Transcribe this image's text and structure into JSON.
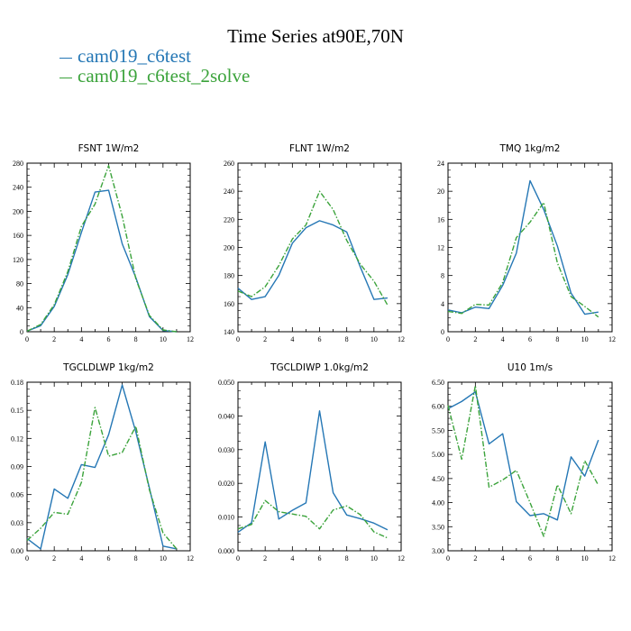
{
  "figure": {
    "title": "Time Series at90E,70N"
  },
  "legend": [
    {
      "name": "cam019_c6test",
      "color": "#2577b5"
    },
    {
      "name": "cam019_c6test_2solve",
      "color": "#3ba33b"
    }
  ],
  "chart_data": [
    {
      "type": "line",
      "title": "FSNT   1W/m2",
      "xlim": [
        0,
        12
      ],
      "ylim": [
        0,
        280
      ],
      "xticks": [
        0,
        2,
        4,
        6,
        8,
        10,
        12
      ],
      "yticks": [
        0,
        40,
        80,
        120,
        160,
        200,
        240,
        280
      ],
      "ytick_labels": [
        "0",
        "40",
        "80",
        "120",
        "160",
        "200",
        "240",
        "280"
      ],
      "x": [
        0,
        1,
        2,
        3,
        4,
        5,
        6,
        7,
        8,
        9,
        10,
        11
      ],
      "series": [
        {
          "name": "cam019_c6test",
          "values": [
            1,
            10,
            42,
            95,
            165,
            232,
            235,
            146,
            90,
            25,
            2,
            0
          ]
        },
        {
          "name": "cam019_c6test_2solve",
          "values": [
            1,
            12,
            45,
            100,
            175,
            212,
            276,
            192,
            88,
            27,
            3,
            0
          ]
        }
      ]
    },
    {
      "type": "line",
      "title": "FLNT   1W/m2",
      "xlim": [
        0,
        12
      ],
      "ylim": [
        140,
        260
      ],
      "xticks": [
        0,
        2,
        4,
        6,
        8,
        10,
        12
      ],
      "yticks": [
        140,
        160,
        180,
        200,
        220,
        240,
        260
      ],
      "ytick_labels": [
        "140",
        "160",
        "180",
        "200",
        "220",
        "240",
        "260"
      ],
      "x": [
        0,
        1,
        2,
        3,
        4,
        5,
        6,
        7,
        8,
        9,
        10,
        11
      ],
      "series": [
        {
          "name": "cam019_c6test",
          "values": [
            171,
            163,
            165,
            180,
            203,
            214,
            219,
            216,
            211,
            186,
            163,
            164
          ]
        },
        {
          "name": "cam019_c6test_2solve",
          "values": [
            169,
            165,
            172,
            187,
            206,
            216,
            240,
            227,
            205,
            188,
            176,
            159
          ]
        }
      ]
    },
    {
      "type": "line",
      "title": "TMQ   1kg/m2",
      "xlim": [
        0,
        12
      ],
      "ylim": [
        0,
        24
      ],
      "xticks": [
        0,
        2,
        4,
        6,
        8,
        10,
        12
      ],
      "yticks": [
        0,
        4,
        8,
        12,
        16,
        20,
        24
      ],
      "ytick_labels": [
        "0",
        "4",
        "8",
        "12",
        "16",
        "20",
        "24"
      ],
      "x": [
        0,
        1,
        2,
        3,
        4,
        5,
        6,
        7,
        8,
        9,
        10,
        11
      ],
      "series": [
        {
          "name": "cam019_c6test",
          "values": [
            3.1,
            2.7,
            3.5,
            3.3,
            6.6,
            11.2,
            21.5,
            17.4,
            12.2,
            5.5,
            2.5,
            2.8
          ]
        },
        {
          "name": "cam019_c6test_2solve",
          "values": [
            2.9,
            2.6,
            3.9,
            3.8,
            7.0,
            13.4,
            15.6,
            18.4,
            9.8,
            5.0,
            3.6,
            2.1
          ]
        }
      ]
    },
    {
      "type": "line",
      "title": "TGCLDLWP   1kg/m2",
      "xlim": [
        0,
        12
      ],
      "ylim": [
        0,
        0.18
      ],
      "xticks": [
        0,
        2,
        4,
        6,
        8,
        10,
        12
      ],
      "yticks": [
        0,
        0.03,
        0.06,
        0.09,
        0.12,
        0.15,
        0.18
      ],
      "ytick_labels": [
        "0.00",
        "0.03",
        "0.06",
        "0.09",
        "0.12",
        "0.15",
        "0.18"
      ],
      "x": [
        0,
        1,
        2,
        3,
        4,
        5,
        6,
        7,
        8,
        9,
        10,
        11
      ],
      "series": [
        {
          "name": "cam019_c6test",
          "values": [
            0.013,
            0.002,
            0.066,
            0.056,
            0.092,
            0.089,
            0.124,
            0.177,
            0.127,
            0.067,
            0.005,
            0.002
          ]
        },
        {
          "name": "cam019_c6test_2solve",
          "values": [
            0.011,
            0.024,
            0.041,
            0.039,
            0.073,
            0.153,
            0.101,
            0.105,
            0.133,
            0.065,
            0.019,
            0.002
          ]
        }
      ]
    },
    {
      "type": "line",
      "title": "TGCLDIWP   1.0kg/m2",
      "xlim": [
        0,
        12
      ],
      "ylim": [
        0,
        0.05
      ],
      "xticks": [
        0,
        2,
        4,
        6,
        8,
        10,
        12
      ],
      "yticks": [
        0,
        0.01,
        0.02,
        0.03,
        0.04,
        0.05
      ],
      "ytick_labels": [
        "0.000",
        "0.010",
        "0.020",
        "0.030",
        "0.040",
        "0.050"
      ],
      "x": [
        0,
        1,
        2,
        3,
        4,
        5,
        6,
        7,
        8,
        9,
        10,
        11
      ],
      "series": [
        {
          "name": "cam019_c6test",
          "values": [
            0.0055,
            0.0083,
            0.0323,
            0.0094,
            0.012,
            0.0142,
            0.0415,
            0.0172,
            0.0106,
            0.0095,
            0.0082,
            0.0062
          ]
        },
        {
          "name": "cam019_c6test_2solve",
          "values": [
            0.0065,
            0.0078,
            0.0149,
            0.0116,
            0.0109,
            0.0102,
            0.0065,
            0.0121,
            0.0133,
            0.0107,
            0.0056,
            0.0038
          ]
        }
      ]
    },
    {
      "type": "line",
      "title": "U10   1m/s",
      "xlim": [
        0,
        12
      ],
      "ylim": [
        3.0,
        6.5
      ],
      "xticks": [
        0,
        2,
        4,
        6,
        8,
        10,
        12
      ],
      "yticks": [
        3.0,
        3.5,
        4.0,
        4.5,
        5.0,
        5.5,
        6.0,
        6.5
      ],
      "ytick_labels": [
        "3.00",
        "3.50",
        "4.00",
        "4.50",
        "5.00",
        "5.50",
        "6.00",
        "6.50"
      ],
      "x": [
        0,
        1,
        2,
        3,
        4,
        5,
        6,
        7,
        8,
        9,
        10,
        11
      ],
      "series": [
        {
          "name": "cam019_c6test",
          "values": [
            5.95,
            6.1,
            6.3,
            5.22,
            5.43,
            4.02,
            3.73,
            3.77,
            3.64,
            4.95,
            4.55,
            5.3
          ]
        },
        {
          "name": "cam019_c6test_2solve",
          "values": [
            6.02,
            4.9,
            6.43,
            4.32,
            4.47,
            4.67,
            4.0,
            3.3,
            4.37,
            3.77,
            4.87,
            4.36
          ]
        }
      ]
    }
  ]
}
